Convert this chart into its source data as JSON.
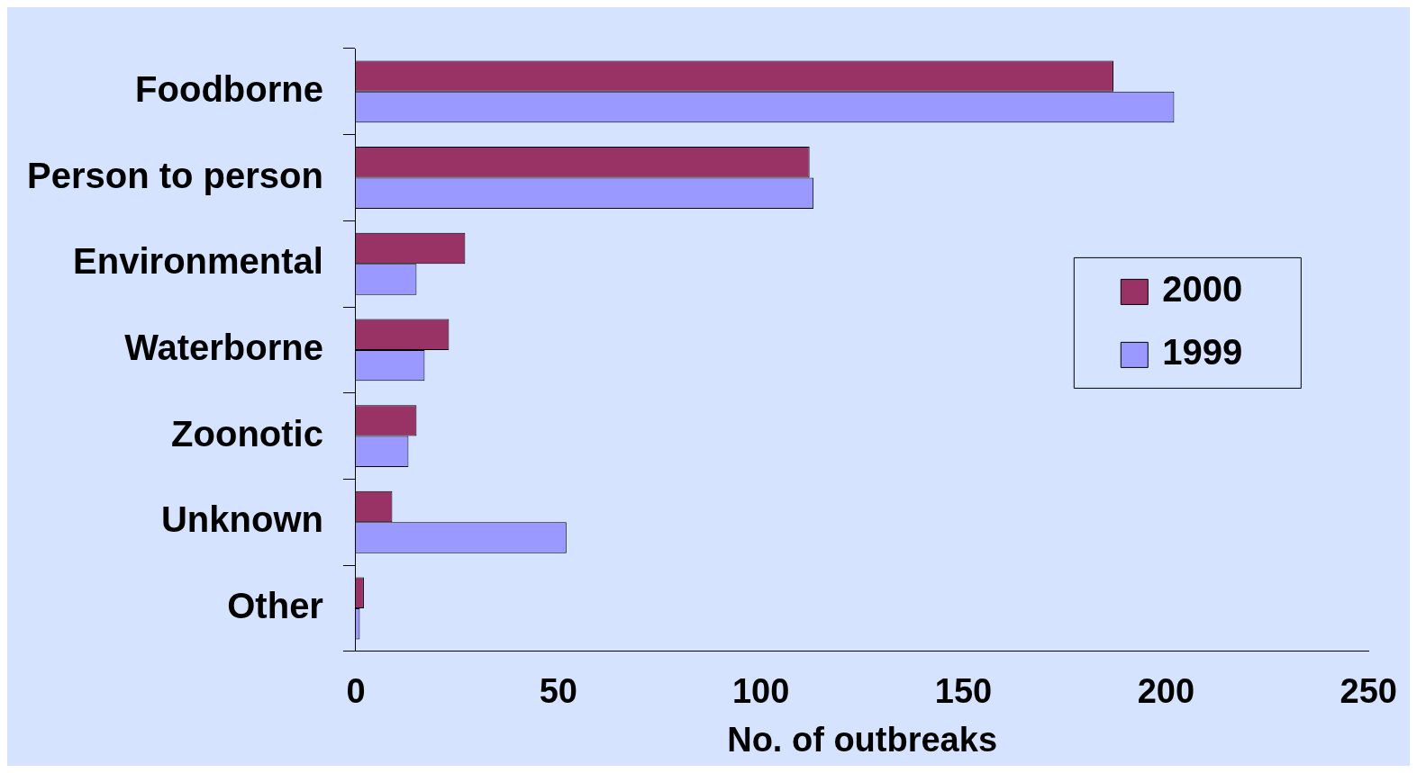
{
  "chart_data": {
    "type": "bar",
    "orientation": "horizontal",
    "xlabel": "No. of outbreaks",
    "categories": [
      "Foodborne",
      "Person to person",
      "Environmental",
      "Waterborne",
      "Zoonotic",
      "Unknown",
      "Other"
    ],
    "series": [
      {
        "name": "2000",
        "color": "#993366",
        "values": [
          187,
          112,
          27,
          23,
          15,
          9,
          2
        ]
      },
      {
        "name": "1999",
        "color": "#9999ff",
        "values": [
          202,
          113,
          15,
          17,
          13,
          52,
          1
        ]
      }
    ],
    "xlim": [
      0,
      250
    ],
    "xticks": [
      0,
      50,
      100,
      150,
      200,
      250
    ],
    "grid": false,
    "legend": "right"
  }
}
